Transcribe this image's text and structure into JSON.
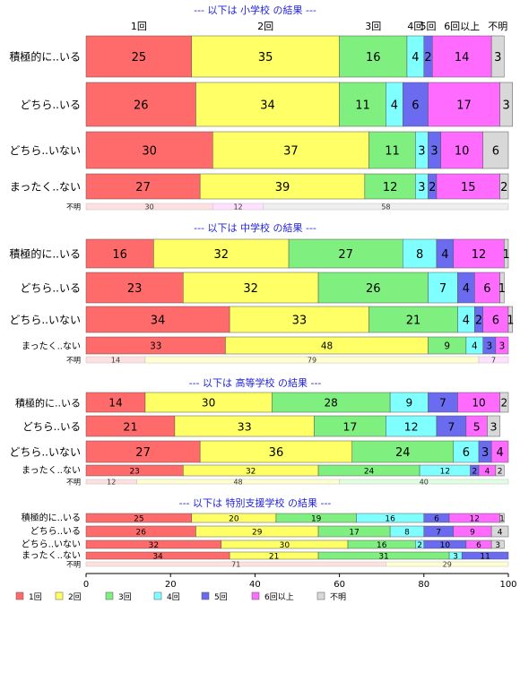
{
  "chart_data": {
    "type": "bar",
    "orientation": "horizontal",
    "stacked": true,
    "percent": true,
    "xlim": [
      0,
      100
    ],
    "x_ticks": [
      0,
      20,
      40,
      60,
      80,
      100
    ],
    "top_category_labels": [
      "1回",
      "2回",
      "3回",
      "4回",
      "5回",
      "6回以上",
      "不明"
    ],
    "colors": {
      "1回": "#ff6b6b",
      "2回": "#ffff66",
      "3回": "#7fef7f",
      "4回": "#7fffff",
      "5回": "#6b6bef",
      "6回以上": "#ff6bff",
      "不明": "#d8d8d8"
    },
    "legend": {
      "position": "bottom",
      "items": [
        "1回",
        "2回",
        "3回",
        "4回",
        "5回",
        "6回以上",
        "不明"
      ]
    },
    "panels": [
      {
        "title": "--- 以下は 小学校 の結果 ---",
        "rows": [
          {
            "label": "積極的に..いる",
            "values": [
              25,
              35,
              16,
              4,
              2,
              14,
              3
            ],
            "labels": [
              "25",
              "35",
              "16",
              "4",
              "2",
              "14",
              "3"
            ]
          },
          {
            "label": "どちら..いる",
            "values": [
              26,
              34,
              11,
              4,
              6,
              17,
              3
            ],
            "labels": [
              "26",
              "34",
              "11",
              "4",
              "6",
              "17",
              "3"
            ]
          },
          {
            "label": "どちら..いない",
            "values": [
              30,
              37,
              11,
              3,
              3,
              10,
              6
            ],
            "labels": [
              "30",
              "37",
              "11",
              "3",
              "3",
              "10",
              "6"
            ]
          },
          {
            "label": "まったく..ない",
            "values": [
              27,
              39,
              12,
              3,
              2,
              15,
              2
            ],
            "labels": [
              "27",
              "39",
              "12",
              "3",
              "2",
              "15",
              "2"
            ]
          }
        ],
        "unknown": {
          "label": "不明",
          "values": [
            30,
            0,
            0,
            0,
            0,
            12,
            58
          ],
          "labels": [
            "30",
            "",
            "",
            "",
            "",
            "12",
            "58"
          ]
        }
      },
      {
        "title": "--- 以下は 中学校 の結果 ---",
        "rows": [
          {
            "label": "積極的に..いる",
            "values": [
              16,
              32,
              27,
              8,
              4,
              12,
              1
            ],
            "labels": [
              "16",
              "32",
              "27",
              "8",
              "4",
              "12",
              "1"
            ]
          },
          {
            "label": "どちら..いる",
            "values": [
              23,
              32,
              26,
              7,
              4,
              6,
              1
            ],
            "labels": [
              "23",
              "32",
              "26",
              "7",
              "4",
              "6",
              "1"
            ]
          },
          {
            "label": "どちら..いない",
            "values": [
              34,
              33,
              21,
              4,
              2,
              6,
              1
            ],
            "labels": [
              "34",
              "33",
              "21",
              "4",
              "2",
              "6",
              "1"
            ]
          },
          {
            "label": "まったく..ない",
            "values": [
              33,
              48,
              9,
              4,
              3,
              3,
              0
            ],
            "labels": [
              "33",
              "48",
              "9",
              "4",
              "3",
              "3",
              ""
            ]
          }
        ],
        "unknown": {
          "label": "不明",
          "values": [
            14,
            79,
            0,
            0,
            0,
            7,
            0
          ],
          "labels": [
            "14",
            "79",
            "",
            "",
            "",
            "7",
            ""
          ]
        }
      },
      {
        "title": "--- 以下は 高等学校 の結果 ---",
        "rows": [
          {
            "label": "積極的に..いる",
            "values": [
              14,
              30,
              28,
              9,
              7,
              10,
              2
            ],
            "labels": [
              "14",
              "30",
              "28",
              "9",
              "7",
              "10",
              "2"
            ]
          },
          {
            "label": "どちら..いる",
            "values": [
              21,
              33,
              17,
              12,
              7,
              5,
              3
            ],
            "labels": [
              "21",
              "33",
              "17",
              "12",
              "7",
              "5",
              "3"
            ]
          },
          {
            "label": "どちら..いない",
            "values": [
              27,
              36,
              24,
              6,
              3,
              4,
              0
            ],
            "labels": [
              "27",
              "36",
              "24",
              "6",
              "3",
              "4",
              ""
            ]
          },
          {
            "label": "まったく..ない",
            "values": [
              23,
              32,
              24,
              12,
              2,
              4,
              2
            ],
            "labels": [
              "23",
              "32",
              "24",
              "12",
              "2",
              "4",
              "2"
            ]
          }
        ],
        "unknown": {
          "label": "不明",
          "values": [
            12,
            48,
            40,
            0,
            0,
            0,
            0
          ],
          "labels": [
            "12",
            "48",
            "40",
            "",
            "",
            "",
            ""
          ]
        }
      },
      {
        "title": "--- 以下は 特別支援学校 の結果 ---",
        "rows": [
          {
            "label": "積極的に..いる",
            "values": [
              25,
              20,
              19,
              16,
              6,
              12,
              1
            ],
            "labels": [
              "25",
              "20",
              "19",
              "16",
              "6",
              "12",
              "1"
            ]
          },
          {
            "label": "どちら..いる",
            "values": [
              26,
              29,
              17,
              8,
              7,
              9,
              4
            ],
            "labels": [
              "26",
              "29",
              "17",
              "8",
              "7",
              "9",
              "4"
            ]
          },
          {
            "label": "どちら..いない",
            "values": [
              32,
              30,
              16,
              2,
              10,
              6,
              3
            ],
            "labels": [
              "32",
              "30",
              "16",
              "2",
              "10",
              "6",
              "3"
            ]
          },
          {
            "label": "まったく..ない",
            "values": [
              34,
              21,
              31,
              3,
              11,
              0,
              0
            ],
            "labels": [
              "34",
              "21",
              "31",
              "3",
              "11",
              "",
              ""
            ]
          }
        ],
        "unknown": {
          "label": "不明",
          "values": [
            71,
            29,
            0,
            0,
            0,
            0,
            0
          ],
          "labels": [
            "71",
            "29",
            "",
            "",
            "",
            "",
            ""
          ]
        }
      }
    ]
  }
}
